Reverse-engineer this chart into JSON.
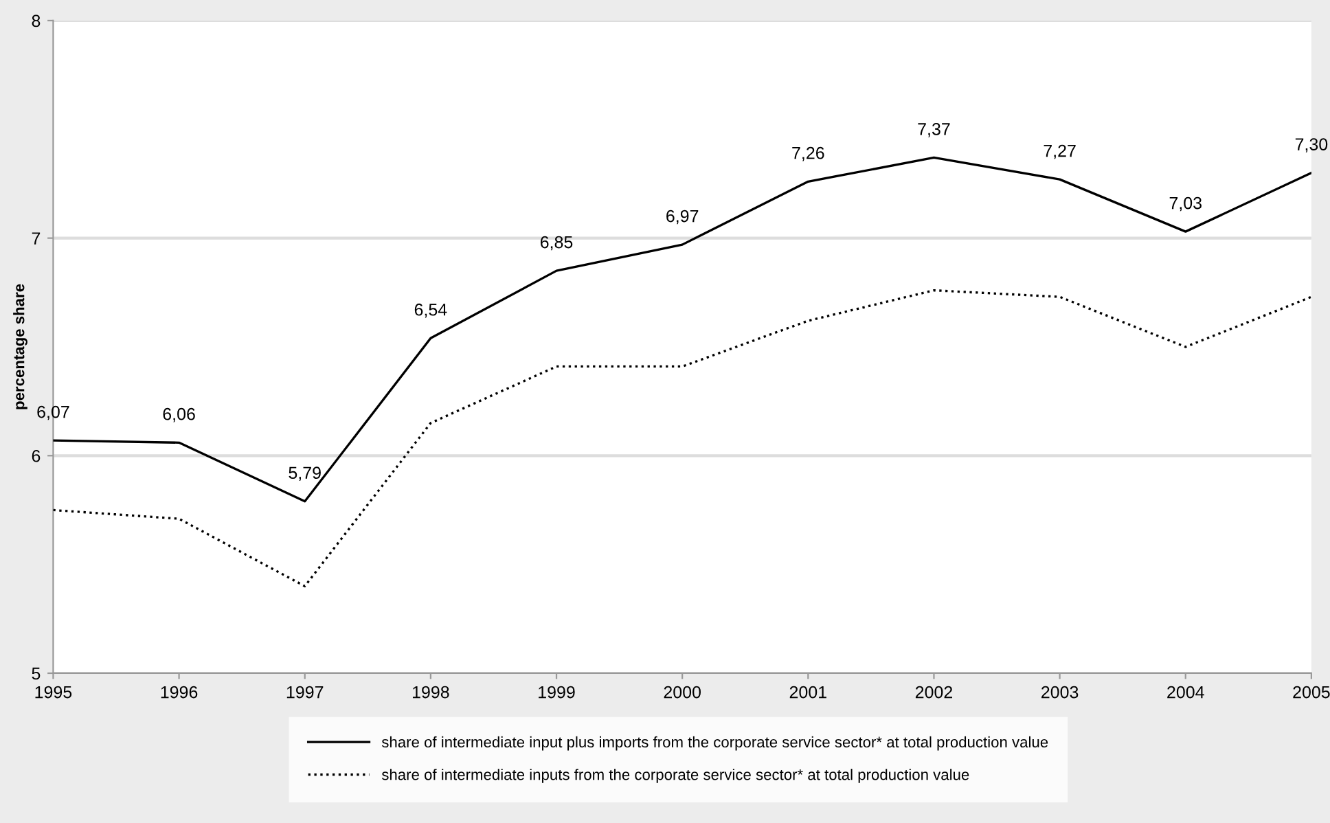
{
  "chart_data": {
    "type": "line",
    "ylabel": "percentage share",
    "x": [
      1995,
      1996,
      1997,
      1998,
      1999,
      2000,
      2001,
      2002,
      2003,
      2004,
      2005
    ],
    "series": [
      {
        "name": "share of intermediate input plus imports from the corporate service sector* at total production value",
        "color": "#000000",
        "line_style": "solid",
        "values": [
          6.07,
          6.06,
          5.79,
          6.54,
          6.85,
          6.97,
          7.26,
          7.37,
          7.27,
          7.03,
          7.3
        ],
        "value_labels": [
          "6,07",
          "6,06",
          "5,79",
          "6,54",
          "6,85",
          "6,97",
          "7,26",
          "7,37",
          "7,27",
          "7,03",
          "7,30"
        ]
      },
      {
        "name": "share of intermediate inputs from the corporate service sector* at total production value",
        "color": "#000000",
        "line_style": "dotted",
        "values": [
          5.75,
          5.71,
          5.4,
          6.15,
          6.41,
          6.41,
          6.62,
          6.76,
          6.73,
          6.5,
          6.73
        ]
      }
    ],
    "xlim": [
      1995,
      2005
    ],
    "xticks": [
      1995,
      1996,
      1997,
      1998,
      1999,
      2000,
      2001,
      2002,
      2003,
      2004,
      2005
    ],
    "ylim": [
      5,
      8
    ],
    "yticks": [
      5,
      6,
      7,
      8
    ],
    "grid": "y",
    "legend": "bottom",
    "marker": "none"
  }
}
